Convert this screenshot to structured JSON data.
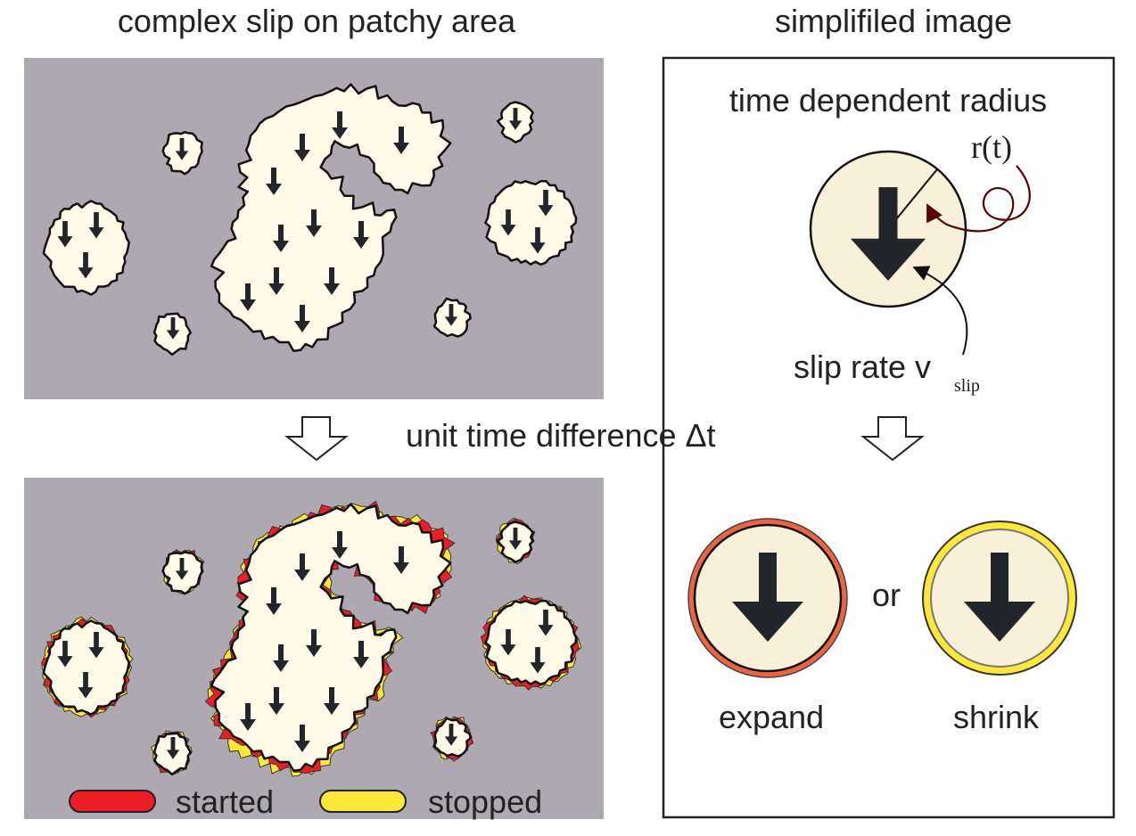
{
  "left_panel": {
    "title": "complex slip on patchy area",
    "step_label": "unit time difference Δt",
    "legend": {
      "started": {
        "label": "started",
        "color": "#ee1c24"
      },
      "stopped": {
        "label": "stopped",
        "color": "#ffe838"
      }
    }
  },
  "right_panel": {
    "title": "simplifiled image",
    "subtitle": "time dependent radius",
    "radius_label": "r(t)",
    "slip_rate_label": "slip rate v",
    "slip_rate_subscript": "slip",
    "connector_word": "or",
    "expand_label": "expand",
    "shrink_label": "shrink",
    "expand_ring_color": "#ee6440",
    "shrink_ring_color": "#ffe838"
  },
  "colors": {
    "fault_background": "#aea8b0",
    "patch_fill": "#fffbe8",
    "disk_fill": "#f8f0d8",
    "arrow": "#22262b",
    "outline": "#111111",
    "radius_arrow": "#5a0000"
  },
  "icons": {
    "slip_vector": "down-arrow-icon",
    "transition": "hollow-down-arrow-icon"
  }
}
